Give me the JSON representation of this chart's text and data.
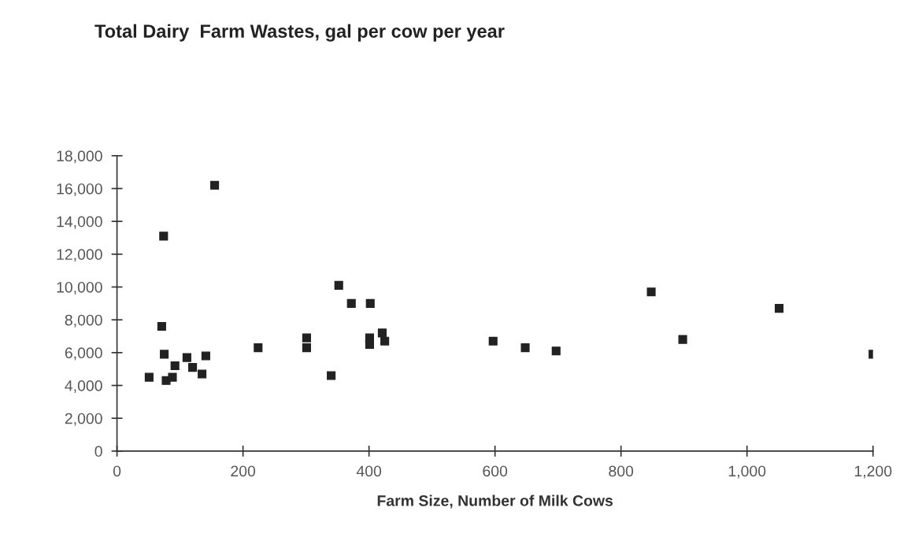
{
  "chart_data": {
    "type": "scatter",
    "title": "Total Dairy  Farm Wastes, gal per cow per year",
    "xlabel": "Farm Size, Number of Milk Cows",
    "x": [
      51,
      71,
      74,
      75,
      78,
      88,
      92,
      111,
      120,
      135,
      141,
      155,
      224,
      301,
      301,
      340,
      352,
      372,
      402,
      401,
      401,
      421,
      425,
      597,
      648,
      697,
      848,
      898,
      1051,
      1200
    ],
    "values": [
      4500,
      7600,
      13100,
      5900,
      4300,
      4500,
      5200,
      5700,
      5100,
      4700,
      5800,
      16200,
      6300,
      6900,
      6300,
      4600,
      10100,
      9000,
      9000,
      6900,
      6500,
      7200,
      6700,
      6700,
      6300,
      6100,
      9700,
      6800,
      8700,
      5900
    ],
    "color": "#222222",
    "marker": "square",
    "grid": false,
    "xlim": [
      0,
      1200
    ],
    "ylim": [
      0,
      18000
    ],
    "xticks": [
      {
        "value": 0,
        "label": "0"
      },
      {
        "value": 200,
        "label": "200"
      },
      {
        "value": 400,
        "label": "400"
      },
      {
        "value": 600,
        "label": "600"
      },
      {
        "value": 800,
        "label": "800"
      },
      {
        "value": 1000,
        "label": "1,000"
      },
      {
        "value": 1200,
        "label": "1,200"
      }
    ],
    "yticks": [
      {
        "value": 0,
        "label": "0"
      },
      {
        "value": 2000,
        "label": "2,000"
      },
      {
        "value": 4000,
        "label": "4,000"
      },
      {
        "value": 6000,
        "label": "6,000"
      },
      {
        "value": 8000,
        "label": "8,000"
      },
      {
        "value": 10000,
        "label": "10,000"
      },
      {
        "value": 12000,
        "label": "12,000"
      },
      {
        "value": 14000,
        "label": "14,000"
      },
      {
        "value": 16000,
        "label": "16,000"
      },
      {
        "value": 18000,
        "label": "18,000"
      }
    ]
  }
}
